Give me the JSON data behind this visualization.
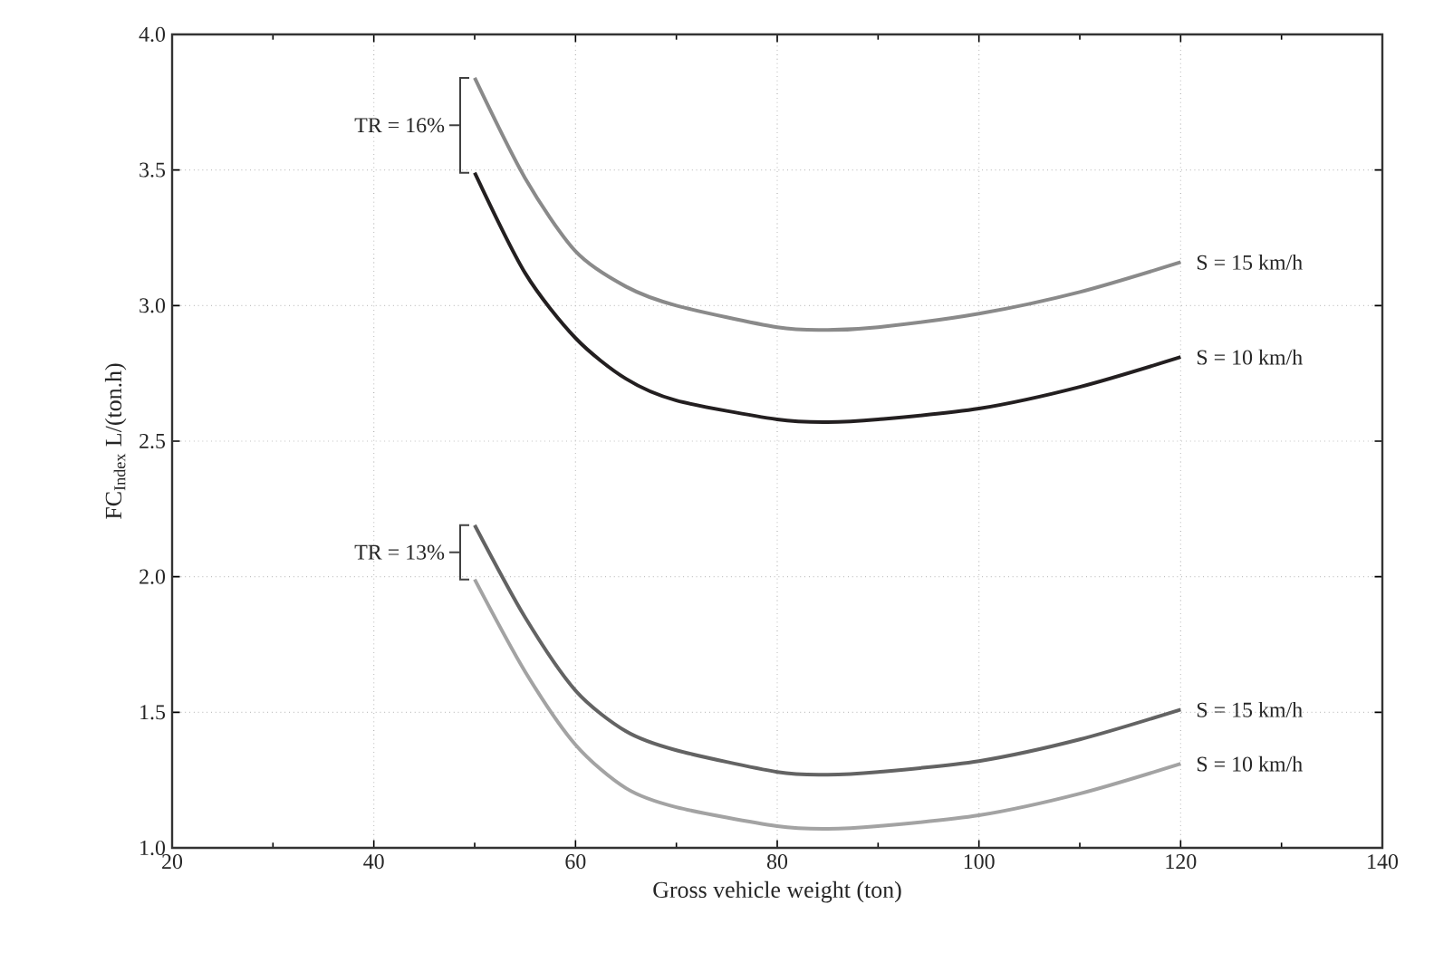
{
  "chart_data": {
    "type": "line",
    "xlabel": "Gross vehicle weight (ton)",
    "ylabel": "FC$_{Index}$ L/(ton.h)",
    "xlim": [
      20,
      140
    ],
    "ylim": [
      1.0,
      4.0
    ],
    "xticks": [
      20,
      40,
      60,
      80,
      100,
      120,
      140
    ],
    "yticks": [
      {
        "value": 1.0,
        "label": "1.0"
      },
      {
        "value": 1.5,
        "label": "1.5"
      },
      {
        "value": 2.0,
        "label": "2.0"
      },
      {
        "value": 2.5,
        "label": "2.5"
      },
      {
        "value": 3.0,
        "label": "3.0"
      },
      {
        "value": 3.5,
        "label": "3.5"
      },
      {
        "value": 4.0,
        "label": "4.0"
      }
    ],
    "grid": true,
    "marker": "none",
    "line_style": "solid",
    "legend": false,
    "x": [
      50,
      55,
      60,
      65,
      70,
      80,
      85,
      90,
      100,
      110,
      120
    ],
    "series": [
      {
        "name": "S = 15 km/h",
        "color": "#8a8a8a",
        "values": [
          3.84,
          3.47,
          3.2,
          3.07,
          3.0,
          2.92,
          2.91,
          2.92,
          2.97,
          3.05,
          3.16
        ]
      },
      {
        "name": "S = 10 km/h",
        "color": "#231f20",
        "values": [
          3.49,
          3.12,
          2.88,
          2.73,
          2.65,
          2.58,
          2.57,
          2.58,
          2.62,
          2.7,
          2.81
        ]
      },
      {
        "name": "S = 15 km/h",
        "color": "#636363",
        "values": [
          2.19,
          1.85,
          1.58,
          1.43,
          1.36,
          1.28,
          1.27,
          1.28,
          1.32,
          1.4,
          1.51
        ]
      },
      {
        "name": "S = 10 km/h",
        "color": "#a3a3a3",
        "values": [
          1.99,
          1.65,
          1.38,
          1.22,
          1.15,
          1.08,
          1.07,
          1.08,
          1.12,
          1.2,
          1.31
        ]
      }
    ],
    "annotations": [
      "TR = 16%",
      "TR = 13%"
    ]
  }
}
